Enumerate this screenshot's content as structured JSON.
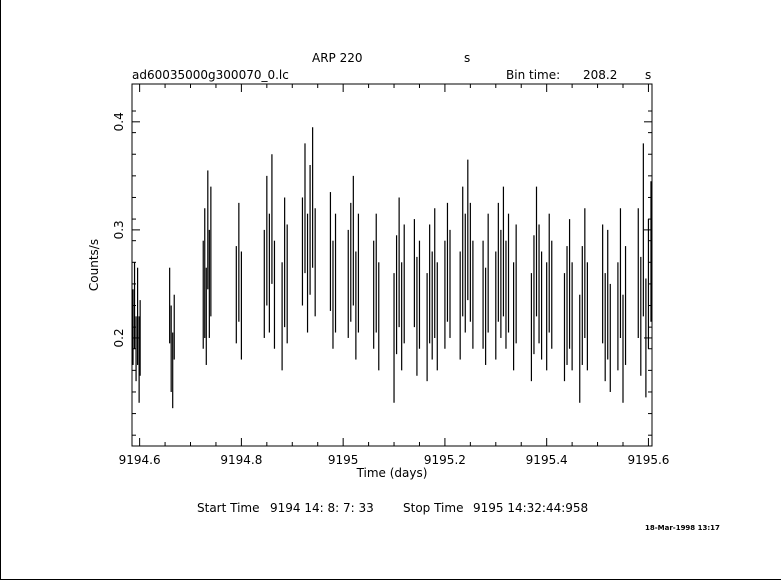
{
  "header": {
    "title": "ARP 220",
    "title_unit": "s",
    "filename": "ad60035000g300070_0.lc",
    "bin_label": "Bin time:",
    "bin_value": "208.2",
    "bin_unit": "s"
  },
  "footer": {
    "start_label": "Start Time",
    "start_value": "9194 14: 8: 7: 33",
    "stop_label": "Stop Time",
    "stop_value": "9195 14:32:44:958",
    "date_stamp": "18-Mar-1998 13:17"
  },
  "chart_data": {
    "type": "scatter",
    "xlabel": "Time (days)",
    "ylabel": "Counts/s",
    "xlim": [
      9194.585,
      9195.607
    ],
    "ylim": [
      0.1,
      0.435
    ],
    "x_ticks": [
      9194.6,
      9194.8,
      9195,
      9195.2,
      9195.4,
      9195.6
    ],
    "x_tick_labels": [
      "9194.6",
      "9194.8",
      "9195",
      "9195.2",
      "9195.4",
      "9195.6"
    ],
    "y_ticks": [
      0.2,
      0.3,
      0.4
    ],
    "y_tick_labels": [
      "0.2",
      "0.3",
      "0.4"
    ],
    "grid": false,
    "error_bars": "vertical",
    "series": [
      {
        "x": [
          9194.587,
          9194.59,
          9194.593,
          9194.596,
          9194.599,
          9194.601,
          9194.659,
          9194.662,
          9194.665,
          9194.668,
          9194.725,
          9194.728,
          9194.731,
          9194.734,
          9194.737,
          9194.74,
          9194.79,
          9194.795,
          9194.8,
          9194.845,
          9194.85,
          9194.855,
          9194.86,
          9194.865,
          9194.88,
          9194.885,
          9194.89,
          9194.92,
          9194.925,
          9194.93,
          9194.935,
          9194.94,
          9194.945,
          9194.975,
          9194.98,
          9194.985,
          9195.01,
          9195.015,
          9195.02,
          9195.025,
          9195.03,
          9195.06,
          9195.065,
          9195.07,
          9195.1,
          9195.105,
          9195.11,
          9195.115,
          9195.12,
          9195.14,
          9195.145,
          9195.15,
          9195.165,
          9195.17,
          9195.175,
          9195.18,
          9195.185,
          9195.2,
          9195.205,
          9195.21,
          9195.23,
          9195.235,
          9195.24,
          9195.245,
          9195.25,
          9195.255,
          9195.275,
          9195.28,
          9195.285,
          9195.3,
          9195.305,
          9195.31,
          9195.315,
          9195.32,
          9195.325,
          9195.335,
          9195.34,
          9195.37,
          9195.375,
          9195.38,
          9195.385,
          9195.39,
          9195.4,
          9195.405,
          9195.41,
          9195.435,
          9195.44,
          9195.445,
          9195.45,
          9195.465,
          9195.47,
          9195.475,
          9195.48,
          9195.51,
          9195.515,
          9195.52,
          9195.525,
          9195.54,
          9195.545,
          9195.55,
          9195.555,
          9195.58,
          9195.585,
          9195.59,
          9195.595,
          9195.6,
          9195.605
        ],
        "y": [
          0.21,
          0.23,
          0.19,
          0.22,
          0.18,
          0.2,
          0.23,
          0.19,
          0.17,
          0.21,
          0.24,
          0.26,
          0.22,
          0.3,
          0.25,
          0.28,
          0.24,
          0.27,
          0.23,
          0.25,
          0.29,
          0.26,
          0.31,
          0.24,
          0.22,
          0.27,
          0.25,
          0.28,
          0.32,
          0.26,
          0.3,
          0.33,
          0.27,
          0.28,
          0.24,
          0.26,
          0.25,
          0.27,
          0.29,
          0.23,
          0.26,
          0.24,
          0.26,
          0.22,
          0.2,
          0.24,
          0.27,
          0.22,
          0.25,
          0.26,
          0.22,
          0.24,
          0.21,
          0.25,
          0.23,
          0.26,
          0.22,
          0.24,
          0.27,
          0.25,
          0.23,
          0.28,
          0.26,
          0.3,
          0.27,
          0.24,
          0.24,
          0.22,
          0.26,
          0.23,
          0.27,
          0.25,
          0.28,
          0.24,
          0.26,
          0.22,
          0.25,
          0.21,
          0.24,
          0.28,
          0.25,
          0.23,
          0.22,
          0.26,
          0.24,
          0.21,
          0.23,
          0.25,
          0.22,
          0.19,
          0.23,
          0.26,
          0.22,
          0.25,
          0.21,
          0.24,
          0.2,
          0.22,
          0.26,
          0.19,
          0.23,
          0.26,
          0.22,
          0.3,
          0.2,
          0.25,
          0.28
        ],
        "err": [
          0.035,
          0.04,
          0.03,
          0.045,
          0.04,
          0.035,
          0.035,
          0.04,
          0.035,
          0.03,
          0.05,
          0.06,
          0.045,
          0.055,
          0.05,
          0.06,
          0.045,
          0.055,
          0.05,
          0.05,
          0.06,
          0.055,
          0.06,
          0.05,
          0.05,
          0.06,
          0.055,
          0.05,
          0.06,
          0.055,
          0.06,
          0.065,
          0.05,
          0.055,
          0.05,
          0.055,
          0.05,
          0.055,
          0.06,
          0.05,
          0.055,
          0.05,
          0.055,
          0.05,
          0.06,
          0.055,
          0.06,
          0.05,
          0.055,
          0.05,
          0.055,
          0.05,
          0.05,
          0.055,
          0.05,
          0.06,
          0.05,
          0.05,
          0.055,
          0.05,
          0.05,
          0.06,
          0.055,
          0.065,
          0.055,
          0.05,
          0.05,
          0.045,
          0.055,
          0.05,
          0.055,
          0.05,
          0.06,
          0.05,
          0.055,
          0.05,
          0.055,
          0.05,
          0.055,
          0.06,
          0.055,
          0.05,
          0.05,
          0.055,
          0.05,
          0.05,
          0.055,
          0.06,
          0.05,
          0.05,
          0.055,
          0.06,
          0.05,
          0.055,
          0.05,
          0.06,
          0.05,
          0.05,
          0.06,
          0.05,
          0.055,
          0.06,
          0.055,
          0.08,
          0.055,
          0.06,
          0.065
        ]
      }
    ]
  }
}
